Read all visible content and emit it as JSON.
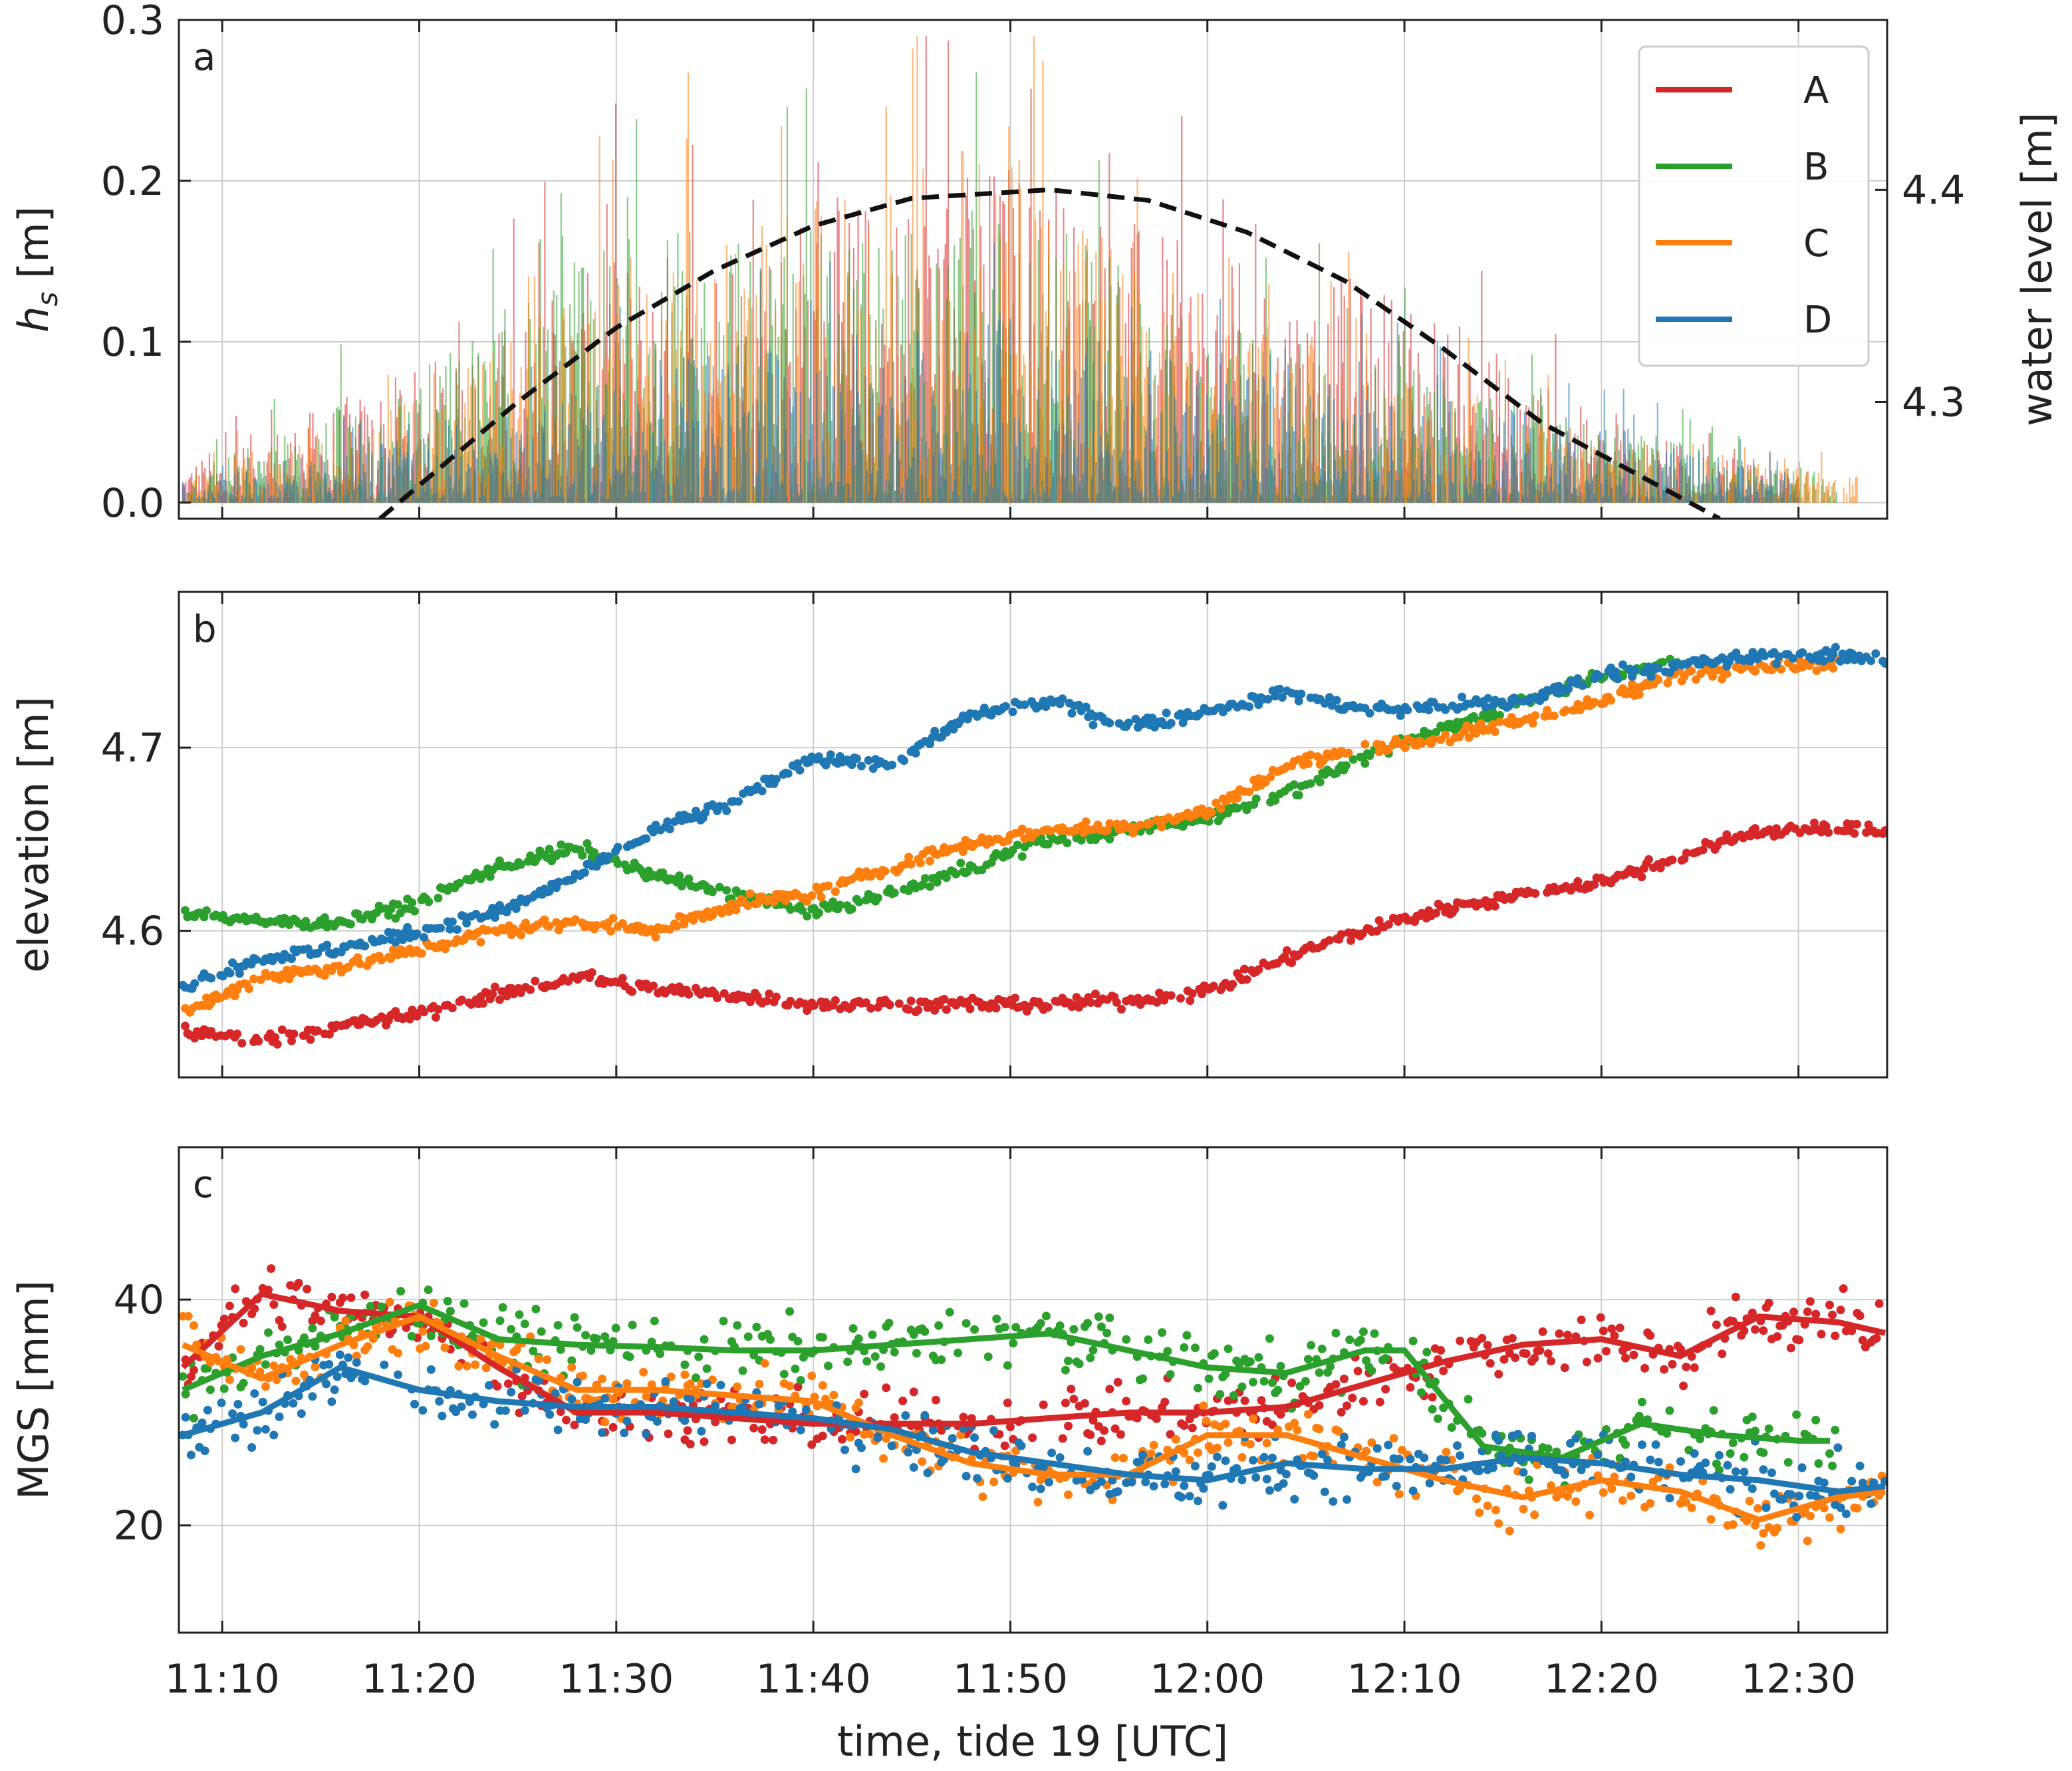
{
  "x_axis": {
    "label": "time, tide 19  [UTC]",
    "tick_labels": [
      "11:10",
      "11:20",
      "11:30",
      "11:40",
      "11:50",
      "12:00",
      "12:10",
      "12:20",
      "12:30"
    ],
    "tick_minutes": [
      10,
      20,
      30,
      40,
      50,
      60,
      70,
      80,
      90
    ],
    "range_minutes": [
      7.8,
      94.5
    ]
  },
  "colors": {
    "A": "#d62728",
    "B": "#2ca02c",
    "C": "#ff7f0e",
    "D": "#1f77b4",
    "tide": "#111111",
    "grid": "#cccccc"
  },
  "panel_a": {
    "letter": "a",
    "ylabel_main": "h",
    "ylabel_sub": "s",
    "ylabel_unit": " [m]",
    "ylabel_right": "water level [m]",
    "yticks": [
      "0.0",
      "0.1",
      "0.2",
      "0.3"
    ],
    "ytick_values": [
      0.0,
      0.1,
      0.2,
      0.3
    ],
    "yticks_right": [
      "4.3",
      "4.4"
    ],
    "ytick_right_values": [
      4.3,
      4.4
    ],
    "legend": [
      {
        "label": "A",
        "key": "A"
      },
      {
        "label": "B",
        "key": "B"
      },
      {
        "label": "C",
        "key": "C"
      },
      {
        "label": "D",
        "key": "D"
      }
    ]
  },
  "panel_b": {
    "letter": "b",
    "ylabel": "elevation [m]",
    "yticks": [
      "4.6",
      "4.7"
    ],
    "ytick_values": [
      4.6,
      4.7
    ]
  },
  "panel_c": {
    "letter": "c",
    "ylabel": "MGS [mm]",
    "yticks": [
      "20",
      "40"
    ],
    "ytick_values": [
      20,
      40
    ]
  },
  "chart_data": [
    {
      "type": "bar",
      "title": "",
      "xlabel": "",
      "ylabel": "h_s [m]",
      "ylabel_right": "water level [m]",
      "ylim": [
        -0.01,
        0.3
      ],
      "ylim_right": [
        4.245,
        4.48
      ],
      "series_envelope": [
        {
          "name": "A",
          "x_min": [
            8,
            20,
            30,
            40,
            50,
            60,
            70,
            80,
            90
          ],
          "typical_max_hs": [
            0.03,
            0.1,
            0.18,
            0.22,
            0.26,
            0.18,
            0.16,
            0.06,
            0.02
          ],
          "peak_hs": 0.29
        },
        {
          "name": "B",
          "x_min": [
            8,
            20,
            30,
            40,
            50,
            60,
            70,
            80,
            92
          ],
          "typical_max_hs": [
            0.02,
            0.1,
            0.2,
            0.2,
            0.22,
            0.14,
            0.1,
            0.06,
            0.02
          ],
          "peak_hs": 0.28
        },
        {
          "name": "C",
          "x_min": [
            8,
            20,
            30,
            40,
            50,
            60,
            70,
            80,
            93
          ],
          "typical_max_hs": [
            0.02,
            0.08,
            0.18,
            0.22,
            0.28,
            0.15,
            0.1,
            0.05,
            0.02
          ],
          "peak_hs": 0.29
        },
        {
          "name": "D",
          "x_min": [
            8,
            20,
            30,
            40,
            50,
            60,
            70,
            80,
            90
          ],
          "typical_max_hs": [
            0.02,
            0.05,
            0.1,
            0.12,
            0.14,
            0.1,
            0.08,
            0.06,
            0.02
          ],
          "peak_hs": 0.18
        }
      ],
      "water_level": {
        "name": "water level",
        "style": "dashed",
        "x_min": [
          18,
          25,
          30,
          35,
          40,
          45,
          52,
          57,
          62,
          67,
          72,
          77,
          82,
          86
        ],
        "values": [
          4.245,
          4.3,
          4.335,
          4.362,
          4.383,
          4.396,
          4.4,
          4.395,
          4.38,
          4.357,
          4.325,
          4.29,
          4.265,
          4.245
        ]
      }
    },
    {
      "type": "scatter",
      "ylabel": "elevation [m]",
      "ylim": [
        4.52,
        4.785
      ],
      "series": [
        {
          "name": "A",
          "x_min": [
            8,
            12,
            16,
            20,
            24,
            28,
            32,
            36,
            40,
            44,
            48,
            52,
            56,
            60,
            64,
            68,
            72,
            76,
            80,
            84,
            88,
            92,
            94.5
          ],
          "values": [
            4.545,
            4.54,
            4.548,
            4.555,
            4.565,
            4.575,
            4.568,
            4.565,
            4.56,
            4.56,
            4.56,
            4.56,
            4.562,
            4.567,
            4.585,
            4.6,
            4.612,
            4.62,
            4.627,
            4.64,
            4.655,
            4.655,
            4.655
          ]
        },
        {
          "name": "B",
          "x_min": [
            8,
            12,
            16,
            20,
            24,
            28,
            32,
            36,
            40,
            44,
            48,
            52,
            56,
            60,
            64,
            68,
            72,
            76,
            80,
            84
          ],
          "values": [
            4.61,
            4.605,
            4.605,
            4.615,
            4.635,
            4.645,
            4.63,
            4.62,
            4.61,
            4.62,
            4.635,
            4.65,
            4.655,
            4.662,
            4.675,
            4.695,
            4.71,
            4.725,
            4.74,
            4.745
          ]
        },
        {
          "name": "C",
          "x_min": [
            8,
            12,
            16,
            20,
            24,
            28,
            32,
            36,
            40,
            44,
            48,
            52,
            56,
            60,
            64,
            68,
            72,
            76,
            80,
            84,
            88,
            92
          ],
          "values": [
            4.555,
            4.575,
            4.58,
            4.59,
            4.6,
            4.605,
            4.6,
            4.615,
            4.62,
            4.635,
            4.648,
            4.655,
            4.657,
            4.665,
            4.69,
            4.7,
            4.705,
            4.715,
            4.725,
            4.74,
            4.745,
            4.745
          ]
        },
        {
          "name": "D",
          "x_min": [
            8,
            12,
            16,
            20,
            24,
            28,
            32,
            36,
            40,
            44,
            48,
            52,
            56,
            60,
            64,
            68,
            72,
            76,
            80,
            84,
            88,
            92,
            94.5
          ],
          "values": [
            4.57,
            4.585,
            4.59,
            4.6,
            4.61,
            4.63,
            4.655,
            4.67,
            4.695,
            4.69,
            4.718,
            4.725,
            4.712,
            4.72,
            4.73,
            4.72,
            4.722,
            4.725,
            4.74,
            4.745,
            4.75,
            4.75,
            4.748
          ]
        }
      ]
    },
    {
      "type": "scatter",
      "ylabel": "MGS [mm]",
      "ylim": [
        10.5,
        53.5
      ],
      "series": [
        {
          "name": "A",
          "smooth_x_min": [
            8,
            12,
            16,
            20,
            24,
            28,
            32,
            36,
            40,
            44,
            48,
            52,
            56,
            60,
            64,
            68,
            72,
            76,
            80,
            84,
            88,
            92,
            94.5
          ],
          "smooth": [
            34,
            40.5,
            39,
            38.5,
            34,
            30,
            30,
            29.5,
            29,
            29,
            29,
            29.5,
            30,
            30,
            30.5,
            32.5,
            34.5,
            36,
            36.5,
            35,
            38.5,
            38,
            37
          ]
        },
        {
          "name": "B",
          "smooth_x_min": [
            8,
            12,
            16,
            20,
            24,
            28,
            32,
            36,
            40,
            44,
            48,
            52,
            56,
            60,
            64,
            68,
            70,
            74,
            78,
            82,
            86,
            90,
            92
          ],
          "smooth": [
            32,
            35,
            37,
            39.5,
            36.5,
            36,
            35.8,
            35.5,
            35.5,
            36,
            36.5,
            37,
            35.5,
            34,
            33.5,
            35.5,
            35.5,
            27,
            26,
            29,
            28,
            27.5,
            27.5
          ]
        },
        {
          "name": "C",
          "smooth_x_min": [
            8,
            12,
            16,
            20,
            24,
            28,
            32,
            36,
            40,
            44,
            48,
            52,
            56,
            60,
            64,
            68,
            72,
            76,
            80,
            84,
            88,
            92,
            94.5
          ],
          "smooth": [
            36,
            33,
            36,
            38.5,
            35,
            32,
            32,
            31.5,
            31,
            28,
            25.5,
            24.5,
            24.5,
            28,
            28,
            26,
            24,
            22.5,
            24,
            23,
            20.5,
            22.5,
            23
          ]
        },
        {
          "name": "D",
          "smooth_x_min": [
            8,
            12,
            16,
            20,
            24,
            28,
            32,
            36,
            40,
            44,
            48,
            52,
            56,
            60,
            64,
            68,
            72,
            76,
            80,
            84,
            88,
            92,
            94.5
          ],
          "smooth": [
            28,
            30,
            34,
            32,
            31,
            30.5,
            30.5,
            30,
            29.5,
            28.5,
            26.5,
            25.5,
            24.5,
            24,
            25.5,
            25,
            25,
            26,
            25.5,
            24.5,
            24,
            23,
            23.5
          ]
        }
      ]
    }
  ]
}
